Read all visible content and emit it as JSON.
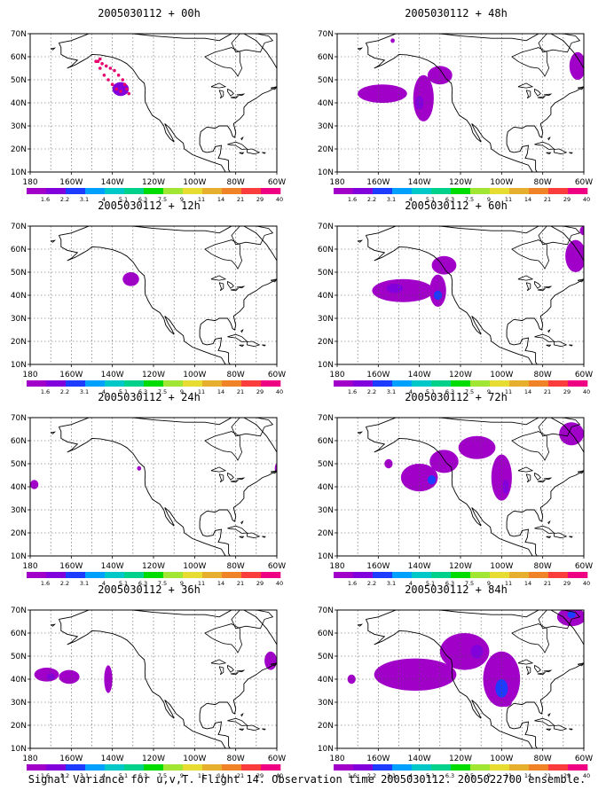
{
  "caption": "Signal Variance for u,v,T. Flight 14. Observation time 2005030112. 2005022700 ensemble.",
  "colorbar": {
    "labels": [
      "1.6",
      "2.2",
      "3.1",
      "4",
      "5.1",
      "6.3",
      "7.5",
      "9",
      "11",
      "14",
      "21",
      "29",
      "40"
    ],
    "colors": [
      "#a000c8",
      "#8200dc",
      "#1e3cff",
      "#00a0ff",
      "#00c8c8",
      "#00d28c",
      "#00dc00",
      "#a0e632",
      "#e6dc32",
      "#e6af2d",
      "#f08228",
      "#fa3c3c",
      "#f00082"
    ]
  },
  "axes": {
    "y_ticks": [
      "70N",
      "60N",
      "50N",
      "40N",
      "30N",
      "20N",
      "10N"
    ],
    "x_ticks": [
      "180",
      "160W",
      "140W",
      "120W",
      "100W",
      "80W",
      "60W"
    ],
    "lon_range": [
      -180,
      -60
    ],
    "lat_range": [
      10,
      70
    ],
    "grid": true
  },
  "chart_data": [
    {
      "type": "heatmap",
      "title": "2005030112 + 00h",
      "lead_hours": 0,
      "blobs": [
        {
          "lon": -136,
          "lat": 46,
          "rx": 4,
          "ry": 3,
          "c": 1
        }
      ],
      "dots": [
        [
          -147,
          58
        ],
        [
          -145,
          57
        ],
        [
          -143,
          56
        ],
        [
          -141,
          55
        ],
        [
          -139,
          54
        ],
        [
          -137,
          52
        ],
        [
          -135,
          50
        ],
        [
          -134,
          48
        ],
        [
          -133,
          46
        ],
        [
          -132,
          44
        ],
        [
          -146,
          55
        ],
        [
          -144,
          52
        ],
        [
          -142,
          50
        ],
        [
          -140,
          48
        ],
        [
          -138,
          46
        ],
        [
          -136,
          45
        ],
        [
          -148,
          58
        ],
        [
          -146,
          59
        ]
      ]
    },
    {
      "type": "heatmap",
      "title": "2005030112 + 12h",
      "lead_hours": 12,
      "blobs": [
        {
          "lon": -131,
          "lat": 47,
          "rx": 4,
          "ry": 3,
          "c": 0
        }
      ],
      "dots": []
    },
    {
      "type": "heatmap",
      "title": "2005030112 + 24h",
      "lead_hours": 24,
      "blobs": [
        {
          "lon": -178,
          "lat": 41,
          "rx": 2,
          "ry": 2,
          "c": 0
        },
        {
          "lon": -127,
          "lat": 48,
          "rx": 1,
          "ry": 1,
          "c": 0
        },
        {
          "lon": -60,
          "lat": 48,
          "rx": 1,
          "ry": 2,
          "c": 0
        }
      ],
      "dots": []
    },
    {
      "type": "heatmap",
      "title": "2005030112 + 36h",
      "lead_hours": 36,
      "blobs": [
        {
          "lon": -172,
          "lat": 42,
          "rx": 6,
          "ry": 3,
          "c": 0
        },
        {
          "lon": -161,
          "lat": 41,
          "rx": 5,
          "ry": 3,
          "c": 0
        },
        {
          "lon": -142,
          "lat": 40,
          "rx": 2,
          "ry": 6,
          "c": 0
        },
        {
          "lon": -63,
          "lat": 48,
          "rx": 3,
          "ry": 4,
          "c": 0
        }
      ],
      "inner": [
        {
          "lon": -170,
          "lat": 41,
          "rx": 2,
          "ry": 1.5,
          "c": 1
        }
      ],
      "dots": []
    },
    {
      "type": "heatmap",
      "title": "2005030112 + 48h",
      "lead_hours": 48,
      "blobs": [
        {
          "lon": -158,
          "lat": 44,
          "rx": 12,
          "ry": 4,
          "c": 0
        },
        {
          "lon": -138,
          "lat": 42,
          "rx": 5,
          "ry": 10,
          "c": 0
        },
        {
          "lon": -130,
          "lat": 52,
          "rx": 6,
          "ry": 4,
          "c": 0
        },
        {
          "lon": -63,
          "lat": 56,
          "rx": 4,
          "ry": 6,
          "c": 0
        },
        {
          "lon": -153,
          "lat": 67,
          "rx": 1,
          "ry": 1,
          "c": 0
        }
      ],
      "inner": [
        {
          "lon": -140,
          "lat": 40,
          "rx": 2,
          "ry": 3,
          "c": 1
        }
      ],
      "dots": []
    },
    {
      "type": "heatmap",
      "title": "2005030112 + 60h",
      "lead_hours": 60,
      "blobs": [
        {
          "lon": -148,
          "lat": 42,
          "rx": 15,
          "ry": 5,
          "c": 0
        },
        {
          "lon": -131,
          "lat": 42,
          "rx": 4,
          "ry": 7,
          "c": 0
        },
        {
          "lon": -128,
          "lat": 53,
          "rx": 6,
          "ry": 4,
          "c": 0
        },
        {
          "lon": -64,
          "lat": 57,
          "rx": 5,
          "ry": 7,
          "c": 0
        },
        {
          "lon": -60,
          "lat": 68,
          "rx": 2,
          "ry": 2,
          "c": 0
        }
      ],
      "inner": [
        {
          "lon": -131,
          "lat": 40,
          "rx": 2,
          "ry": 2,
          "c": 2
        },
        {
          "lon": -152,
          "lat": 43,
          "rx": 4,
          "ry": 2,
          "c": 1
        }
      ],
      "dots": []
    },
    {
      "type": "heatmap",
      "title": "2005030112 + 72h",
      "lead_hours": 72,
      "blobs": [
        {
          "lon": -140,
          "lat": 44,
          "rx": 9,
          "ry": 6,
          "c": 0
        },
        {
          "lon": -128,
          "lat": 51,
          "rx": 7,
          "ry": 5,
          "c": 0
        },
        {
          "lon": -112,
          "lat": 57,
          "rx": 9,
          "ry": 5,
          "c": 0
        },
        {
          "lon": -100,
          "lat": 44,
          "rx": 5,
          "ry": 10,
          "c": 0
        },
        {
          "lon": -155,
          "lat": 50,
          "rx": 2,
          "ry": 2,
          "c": 0
        },
        {
          "lon": -66,
          "lat": 63,
          "rx": 6,
          "ry": 5,
          "c": 0
        }
      ],
      "inner": [
        {
          "lon": -134,
          "lat": 43,
          "rx": 2,
          "ry": 2,
          "c": 2
        },
        {
          "lon": -98,
          "lat": 40,
          "rx": 1.5,
          "ry": 3,
          "c": 1
        }
      ],
      "dots": []
    },
    {
      "type": "heatmap",
      "title": "2005030112 + 84h",
      "lead_hours": 84,
      "blobs": [
        {
          "lon": -142,
          "lat": 42,
          "rx": 20,
          "ry": 7,
          "c": 0
        },
        {
          "lon": -118,
          "lat": 52,
          "rx": 12,
          "ry": 8,
          "c": 0
        },
        {
          "lon": -100,
          "lat": 40,
          "rx": 9,
          "ry": 12,
          "c": 0
        },
        {
          "lon": -173,
          "lat": 40,
          "rx": 2,
          "ry": 2,
          "c": 0
        },
        {
          "lon": -66,
          "lat": 67,
          "rx": 7,
          "ry": 4,
          "c": 0
        },
        {
          "lon": -98,
          "lat": 30,
          "rx": 3,
          "ry": 2,
          "c": 0
        }
      ],
      "inner": [
        {
          "lon": -100,
          "lat": 36,
          "rx": 3,
          "ry": 4,
          "c": 2
        },
        {
          "lon": -112,
          "lat": 52,
          "rx": 3,
          "ry": 3,
          "c": 1
        },
        {
          "lon": -66,
          "lat": 68,
          "rx": 2,
          "ry": 1.5,
          "c": 2
        }
      ],
      "dots": []
    }
  ]
}
